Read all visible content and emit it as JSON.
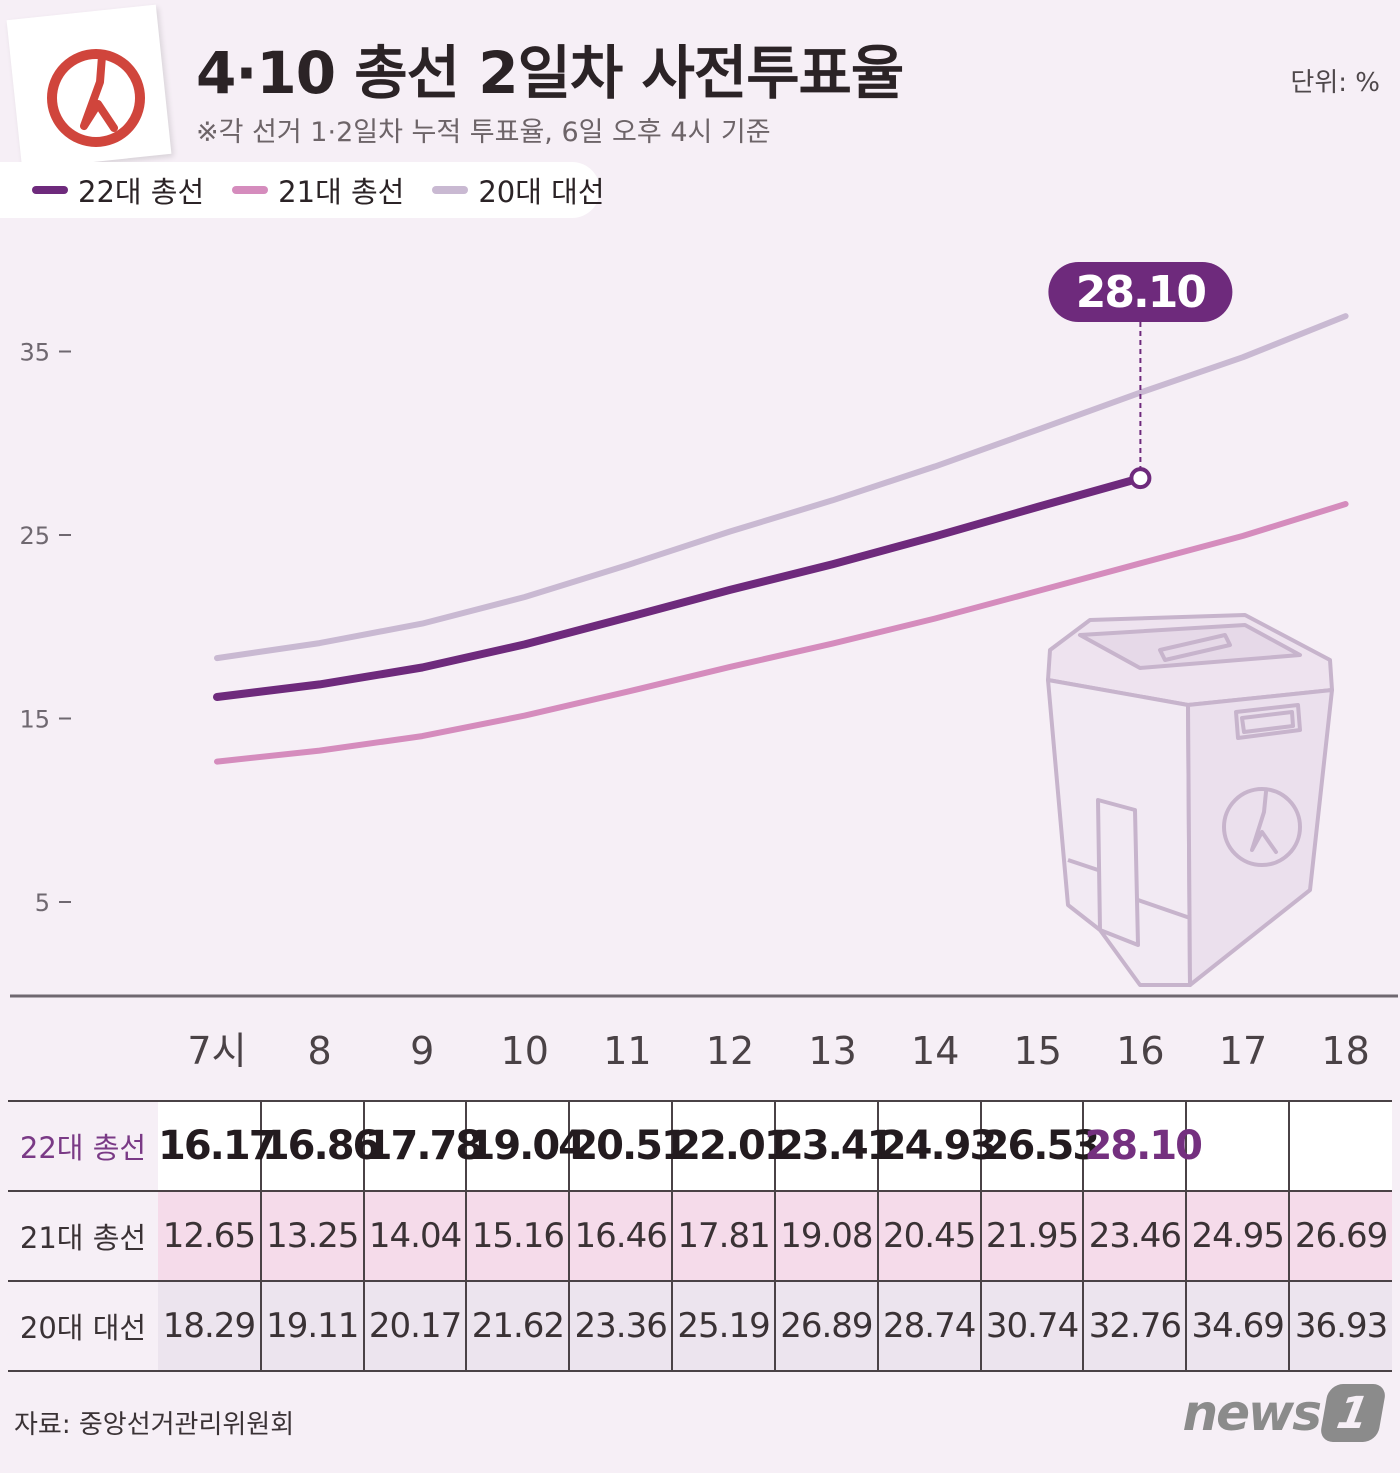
{
  "header": {
    "title": "4·10 총선 2일차 사전투표율",
    "subtitle": "※각 선거 1·2일차 누적 투표율, 6일 오후 4시 기준",
    "unit": "단위: %"
  },
  "legend": [
    {
      "label": "22대 총선",
      "color": "#6e2a7c"
    },
    {
      "label": "21대 총선",
      "color": "#d58cbd"
    },
    {
      "label": "20대 대선",
      "color": "#c9b9d2"
    }
  ],
  "callout": {
    "label": "28.10"
  },
  "chart_data": {
    "type": "line",
    "categories": [
      "7시",
      "8",
      "9",
      "10",
      "11",
      "12",
      "13",
      "14",
      "15",
      "16",
      "17",
      "18"
    ],
    "y_ticks": [
      5,
      15,
      25,
      35
    ],
    "ylim": [
      0,
      39
    ],
    "grid": false,
    "legend_position": "top-left",
    "series": [
      {
        "name": "22대 총선",
        "color": "#6e2a7c",
        "values": [
          16.17,
          16.86,
          17.78,
          19.04,
          20.51,
          22.01,
          23.41,
          24.93,
          26.53,
          28.1,
          null,
          null
        ]
      },
      {
        "name": "21대 총선",
        "color": "#d58cbd",
        "values": [
          12.65,
          13.25,
          14.04,
          15.16,
          16.46,
          17.81,
          19.08,
          20.45,
          21.95,
          23.46,
          24.95,
          26.69
        ]
      },
      {
        "name": "20대 대선",
        "color": "#c9b9d2",
        "values": [
          18.29,
          19.11,
          20.17,
          21.62,
          23.36,
          25.19,
          26.89,
          28.74,
          30.74,
          32.76,
          34.69,
          36.93
        ]
      }
    ]
  },
  "table": {
    "rows": [
      {
        "label": "22대 총선",
        "values": [
          "16.17",
          "16.86",
          "17.78",
          "19.04",
          "20.51",
          "22.01",
          "23.41",
          "24.93",
          "26.53",
          "28.10",
          "",
          ""
        ]
      },
      {
        "label": "21대 총선",
        "values": [
          "12.65",
          "13.25",
          "14.04",
          "15.16",
          "16.46",
          "17.81",
          "19.08",
          "20.45",
          "21.95",
          "23.46",
          "24.95",
          "26.69"
        ]
      },
      {
        "label": "20대 대선",
        "values": [
          "18.29",
          "19.11",
          "20.17",
          "21.62",
          "23.36",
          "25.19",
          "26.89",
          "28.74",
          "30.74",
          "32.76",
          "34.69",
          "36.93"
        ]
      }
    ]
  },
  "footer": {
    "source": "자료: 중앙선거관리위원회",
    "brand": "news",
    "brand_badge": "1"
  }
}
